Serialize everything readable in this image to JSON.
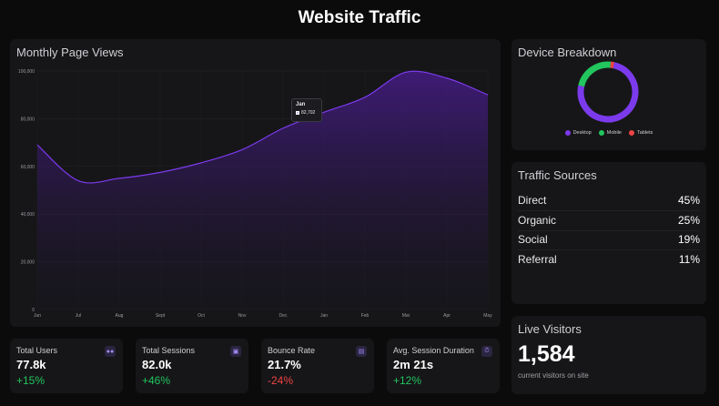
{
  "header": {
    "title": "Website Traffic"
  },
  "monthly": {
    "title": "Monthly Page Views",
    "tooltip": {
      "label": "Jan",
      "value": "82,702"
    }
  },
  "chart_data": {
    "type": "area",
    "title": "Monthly Page Views",
    "categories": [
      "Jun",
      "Jul",
      "Aug",
      "Sept",
      "Oct",
      "Nov",
      "Dec",
      "Jan",
      "Feb",
      "Mar",
      "Apr",
      "May"
    ],
    "values": [
      69000,
      54000,
      55000,
      57500,
      61500,
      67000,
      76000,
      82702,
      89000,
      99500,
      97000,
      90000
    ],
    "yticks": [
      "0",
      "20,000",
      "40,000",
      "60,000",
      "80,000",
      "100,000"
    ],
    "ylim": [
      0,
      100000
    ],
    "color": "#7c3aed"
  },
  "device": {
    "title": "Device Breakdown",
    "legend": [
      {
        "label": "Desktop",
        "color": "#7c3aed",
        "value": 75
      },
      {
        "label": "Mobile",
        "color": "#22c55e",
        "value": 23
      },
      {
        "label": "Tablets",
        "color": "#ef4444",
        "value": 2
      }
    ]
  },
  "sources": {
    "title": "Traffic Sources",
    "rows": [
      {
        "label": "Direct",
        "value": "45%"
      },
      {
        "label": "Organic",
        "value": "25%"
      },
      {
        "label": "Social",
        "value": "19%"
      },
      {
        "label": "Referral",
        "value": "11%"
      }
    ]
  },
  "live": {
    "title": "Live Visitors",
    "count": "1,584",
    "subtitle": "current visitors on site"
  },
  "stats": [
    {
      "label": "Total Users",
      "value": "77.8k",
      "change": "+15%",
      "icon": "users-icon"
    },
    {
      "label": "Total Sessions",
      "value": "82.0k",
      "change": "+46%",
      "icon": "sessions-icon"
    },
    {
      "label": "Bounce Rate",
      "value": "21.7%",
      "change": "-24%",
      "icon": "bounce-icon"
    },
    {
      "label": "Avg. Session Duration",
      "value": "2m 21s",
      "change": "+12%",
      "icon": "timer-icon"
    }
  ]
}
